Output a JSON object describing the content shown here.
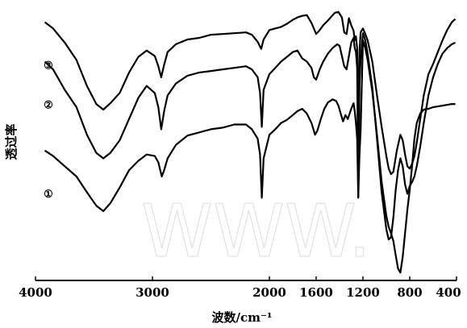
{
  "chart_data": {
    "type": "line",
    "title": "",
    "xlabel": "波数/cm⁻¹",
    "ylabel": "透过率",
    "xlim": [
      4000,
      400
    ],
    "x_reversed": true,
    "x_ticks": [
      4000,
      3000,
      2000,
      1600,
      1200,
      800,
      400
    ],
    "y_ticks": [],
    "grid": false,
    "legend": "none",
    "watermark": "WWW.",
    "series": [
      {
        "name": "③",
        "color": "#000000",
        "points": [
          [
            3920,
            22
          ],
          [
            3850,
            30
          ],
          [
            3750,
            48
          ],
          [
            3650,
            70
          ],
          [
            3560,
            103
          ],
          [
            3480,
            126
          ],
          [
            3420,
            133
          ],
          [
            3360,
            125
          ],
          [
            3280,
            112
          ],
          [
            3200,
            86
          ],
          [
            3120,
            66
          ],
          [
            3050,
            58
          ],
          [
            2980,
            65
          ],
          [
            2950,
            78
          ],
          [
            2925,
            92
          ],
          [
            2900,
            76
          ],
          [
            2870,
            60
          ],
          [
            2800,
            50
          ],
          [
            2700,
            44
          ],
          [
            2600,
            42
          ],
          [
            2500,
            38
          ],
          [
            2400,
            37
          ],
          [
            2300,
            36
          ],
          [
            2200,
            35
          ],
          [
            2150,
            38
          ],
          [
            2100,
            47
          ],
          [
            2070,
            56
          ],
          [
            2050,
            44
          ],
          [
            2000,
            32
          ],
          [
            1950,
            30
          ],
          [
            1900,
            28
          ],
          [
            1850,
            24
          ],
          [
            1800,
            19
          ],
          [
            1760,
            16
          ],
          [
            1720,
            14
          ],
          [
            1680,
            13
          ],
          [
            1640,
            23
          ],
          [
            1600,
            37
          ],
          [
            1570,
            32
          ],
          [
            1540,
            26
          ],
          [
            1500,
            20
          ],
          [
            1470,
            15
          ],
          [
            1440,
            10
          ],
          [
            1410,
            9
          ],
          [
            1380,
            16
          ],
          [
            1360,
            35
          ],
          [
            1340,
            37
          ],
          [
            1320,
            17
          ],
          [
            1300,
            26
          ],
          [
            1280,
            33
          ],
          [
            1270,
            45
          ],
          [
            1260,
            40
          ],
          [
            1250,
            55
          ],
          [
            1240,
            150
          ],
          [
            1230,
            60
          ],
          [
            1220,
            35
          ],
          [
            1200,
            30
          ],
          [
            1180,
            37
          ],
          [
            1160,
            45
          ],
          [
            1120,
            72
          ],
          [
            1080,
            115
          ],
          [
            1040,
            155
          ],
          [
            1000,
            192
          ],
          [
            980,
            208
          ],
          [
            960,
            215
          ],
          [
            940,
            212
          ],
          [
            910,
            185
          ],
          [
            880,
            165
          ],
          [
            860,
            172
          ],
          [
            840,
            190
          ],
          [
            820,
            205
          ],
          [
            800,
            208
          ],
          [
            780,
            202
          ],
          [
            760,
            192
          ],
          [
            740,
            175
          ],
          [
            710,
            145
          ],
          [
            680,
            115
          ],
          [
            640,
            88
          ],
          [
            600,
            75
          ],
          [
            560,
            60
          ],
          [
            520,
            45
          ],
          [
            480,
            32
          ],
          [
            440,
            22
          ],
          [
            410,
            18
          ]
        ]
      },
      {
        "name": "②",
        "color": "#000000",
        "points": [
          [
            3920,
            72
          ],
          [
            3850,
            82
          ],
          [
            3750,
            108
          ],
          [
            3650,
            130
          ],
          [
            3560,
            165
          ],
          [
            3480,
            188
          ],
          [
            3420,
            195
          ],
          [
            3360,
            188
          ],
          [
            3280,
            172
          ],
          [
            3200,
            145
          ],
          [
            3120,
            118
          ],
          [
            3050,
            103
          ],
          [
            2980,
            112
          ],
          [
            2950,
            130
          ],
          [
            2925,
            158
          ],
          [
            2900,
            135
          ],
          [
            2870,
            115
          ],
          [
            2800,
            100
          ],
          [
            2700,
            90
          ],
          [
            2600,
            86
          ],
          [
            2500,
            84
          ],
          [
            2400,
            82
          ],
          [
            2300,
            80
          ],
          [
            2200,
            78
          ],
          [
            2150,
            82
          ],
          [
            2100,
            92
          ],
          [
            2080,
            112
          ],
          [
            2065,
            155
          ],
          [
            2050,
            108
          ],
          [
            2000,
            88
          ],
          [
            1950,
            80
          ],
          [
            1900,
            72
          ],
          [
            1850,
            66
          ],
          [
            1800,
            60
          ],
          [
            1760,
            58
          ],
          [
            1720,
            68
          ],
          [
            1680,
            72
          ],
          [
            1640,
            80
          ],
          [
            1620,
            92
          ],
          [
            1600,
            95
          ],
          [
            1570,
            82
          ],
          [
            1540,
            72
          ],
          [
            1500,
            62
          ],
          [
            1460,
            55
          ],
          [
            1420,
            50
          ],
          [
            1400,
            52
          ],
          [
            1380,
            65
          ],
          [
            1360,
            78
          ],
          [
            1340,
            82
          ],
          [
            1320,
            65
          ],
          [
            1300,
            48
          ],
          [
            1280,
            42
          ],
          [
            1270,
            55
          ],
          [
            1260,
            60
          ],
          [
            1250,
            80
          ],
          [
            1240,
            245
          ],
          [
            1230,
            100
          ],
          [
            1220,
            70
          ],
          [
            1200,
            36
          ],
          [
            1180,
            45
          ],
          [
            1160,
            62
          ],
          [
            1120,
            105
          ],
          [
            1080,
            170
          ],
          [
            1040,
            238
          ],
          [
            1000,
            285
          ],
          [
            980,
            298
          ],
          [
            960,
            295
          ],
          [
            940,
            270
          ],
          [
            920,
            235
          ],
          [
            900,
            210
          ],
          [
            880,
            195
          ],
          [
            860,
            205
          ],
          [
            840,
            228
          ],
          [
            820,
            240
          ],
          [
            800,
            230
          ],
          [
            780,
            225
          ],
          [
            760,
            218
          ],
          [
            740,
            205
          ],
          [
            710,
            180
          ],
          [
            680,
            150
          ],
          [
            640,
            115
          ],
          [
            600,
            92
          ],
          [
            560,
            75
          ],
          [
            520,
            62
          ],
          [
            480,
            55
          ],
          [
            440,
            50
          ],
          [
            410,
            48
          ]
        ]
      },
      {
        "name": "①",
        "color": "#000000",
        "points": [
          [
            3920,
            185
          ],
          [
            3850,
            192
          ],
          [
            3750,
            205
          ],
          [
            3650,
            218
          ],
          [
            3560,
            238
          ],
          [
            3480,
            255
          ],
          [
            3420,
            262
          ],
          [
            3360,
            252
          ],
          [
            3280,
            232
          ],
          [
            3200,
            210
          ],
          [
            3120,
            198
          ],
          [
            3050,
            190
          ],
          [
            2980,
            192
          ],
          [
            2950,
            200
          ],
          [
            2920,
            218
          ],
          [
            2900,
            210
          ],
          [
            2870,
            195
          ],
          [
            2800,
            178
          ],
          [
            2700,
            166
          ],
          [
            2600,
            162
          ],
          [
            2500,
            158
          ],
          [
            2400,
            156
          ],
          [
            2300,
            152
          ],
          [
            2200,
            152
          ],
          [
            2150,
            158
          ],
          [
            2100,
            170
          ],
          [
            2080,
            190
          ],
          [
            2065,
            245
          ],
          [
            2050,
            195
          ],
          [
            2000,
            165
          ],
          [
            1950,
            158
          ],
          [
            1900,
            150
          ],
          [
            1850,
            146
          ],
          [
            1800,
            140
          ],
          [
            1760,
            135
          ],
          [
            1720,
            132
          ],
          [
            1680,
            138
          ],
          [
            1640,
            150
          ],
          [
            1610,
            165
          ],
          [
            1590,
            160
          ],
          [
            1560,
            145
          ],
          [
            1530,
            132
          ],
          [
            1500,
            124
          ],
          [
            1460,
            120
          ],
          [
            1430,
            122
          ],
          [
            1410,
            128
          ],
          [
            1390,
            138
          ],
          [
            1370,
            148
          ],
          [
            1350,
            140
          ],
          [
            1330,
            145
          ],
          [
            1300,
            132
          ],
          [
            1280,
            125
          ],
          [
            1270,
            135
          ],
          [
            1260,
            150
          ],
          [
            1250,
            170
          ],
          [
            1240,
            244
          ],
          [
            1230,
            190
          ],
          [
            1220,
            160
          ],
          [
            1200,
            45
          ],
          [
            1180,
            55
          ],
          [
            1160,
            70
          ],
          [
            1120,
            110
          ],
          [
            1080,
            165
          ],
          [
            1040,
            225
          ],
          [
            1000,
            268
          ],
          [
            980,
            282
          ],
          [
            960,
            290
          ],
          [
            940,
            300
          ],
          [
            920,
            318
          ],
          [
            900,
            335
          ],
          [
            880,
            340
          ],
          [
            860,
            320
          ],
          [
            840,
            290
          ],
          [
            820,
            260
          ],
          [
            800,
            235
          ],
          [
            780,
            205
          ],
          [
            760,
            170
          ],
          [
            740,
            150
          ],
          [
            710,
            138
          ],
          [
            680,
            133
          ],
          [
            640,
            132
          ],
          [
            600,
            130
          ],
          [
            560,
            129
          ],
          [
            520,
            128
          ],
          [
            480,
            127
          ],
          [
            440,
            126
          ],
          [
            410,
            126
          ]
        ]
      }
    ]
  }
}
